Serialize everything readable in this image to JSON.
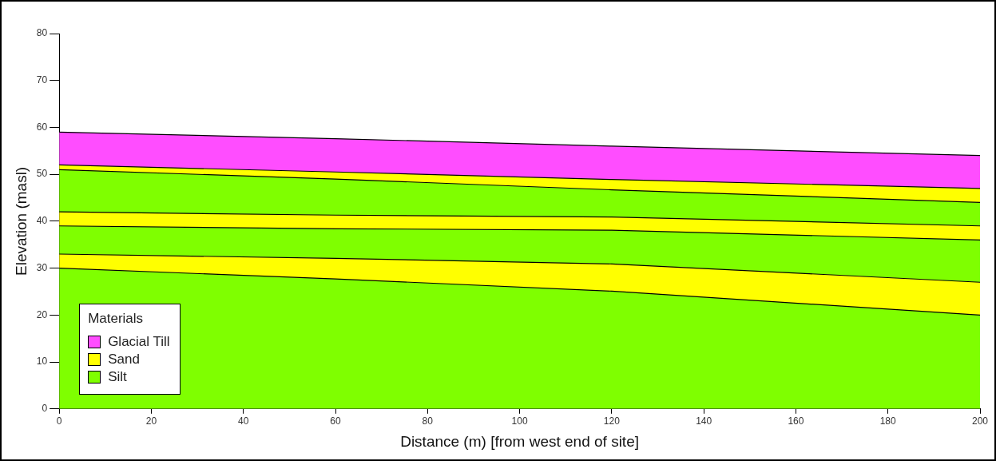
{
  "chart_data": {
    "type": "area",
    "stacked": true,
    "xlabel": "Distance (m) [from west end of site]",
    "ylabel": "Elevation (masl)",
    "legend_title": "Materials",
    "legend": "bottom left",
    "x": [
      0,
      60,
      120,
      200
    ],
    "series": [
      {
        "name": "Silt",
        "color": "#7fff00",
        "values": [
          30,
          27.7,
          25.1,
          20
        ]
      },
      {
        "name": "Sand",
        "color": "#ffff00",
        "values": [
          3,
          4.4,
          5.8,
          7
        ]
      },
      {
        "color": "#7fff00",
        "values": [
          6,
          6.3,
          7.2,
          9
        ]
      },
      {
        "color": "#ffff00",
        "values": [
          3,
          2.9,
          2.8,
          3
        ]
      },
      {
        "color": "#7fff00",
        "values": [
          9,
          7.7,
          5.8,
          5
        ]
      },
      {
        "color": "#ffff00",
        "values": [
          1,
          1.5,
          2.2,
          3
        ]
      },
      {
        "name": "Glacial Till",
        "color": "#ff4dff",
        "values": [
          7,
          7.1,
          7.1,
          7
        ]
      }
    ],
    "xlim": [
      0,
      200
    ],
    "xticks": [
      0,
      20,
      40,
      60,
      80,
      100,
      120,
      140,
      160,
      180,
      200
    ],
    "ylim": [
      0,
      80
    ],
    "yticks": [
      0,
      10,
      20,
      30,
      40,
      50,
      60,
      70,
      80
    ],
    "grid": false
  }
}
